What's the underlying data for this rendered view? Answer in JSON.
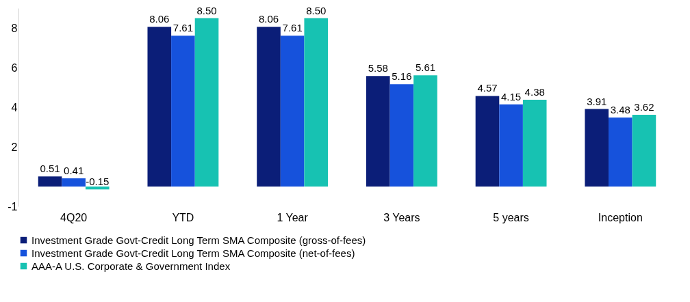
{
  "chart_data": {
    "type": "bar",
    "categories": [
      "4Q20",
      "YTD",
      "1 Year",
      "3 Years",
      "5 years",
      "Inception"
    ],
    "series": [
      {
        "name": "Investment Grade Govt-Credit Long Term SMA Composite (gross-of-fees)",
        "color": "#0b1e78",
        "values": [
          0.51,
          8.06,
          8.06,
          5.58,
          4.57,
          3.91
        ]
      },
      {
        "name": "Investment Grade Govt-Credit Long Term SMA  Composite (net-of-fees)",
        "color": "#1652dc",
        "values": [
          0.41,
          7.61,
          7.61,
          5.16,
          4.15,
          3.48
        ]
      },
      {
        "name": "AAA-A U.S. Corporate & Government Index",
        "color": "#17c2b2",
        "values": [
          -0.15,
          8.5,
          8.5,
          5.61,
          4.38,
          3.62
        ]
      }
    ],
    "value_labels": [
      [
        "0.51",
        "8.06",
        "8.06",
        "5.58",
        "4.57",
        "3.91"
      ],
      [
        "0.41",
        "7.61",
        "7.61",
        "5.16",
        "4.15",
        "3.48"
      ],
      [
        "-0.15",
        "8.50",
        "8.50",
        "5.61",
        "4.38",
        "3.62"
      ]
    ],
    "ylim": [
      -1,
      9
    ],
    "yticks": [
      -1,
      2,
      4,
      6,
      8
    ],
    "grid": false,
    "legend": "bottom"
  }
}
